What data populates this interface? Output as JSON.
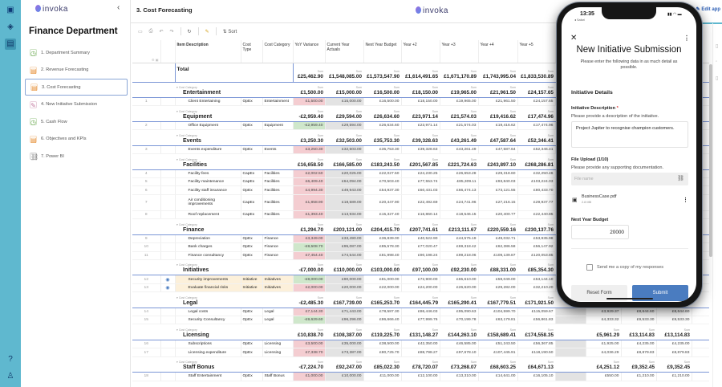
{
  "app": {
    "logo": "invoka",
    "edit_app": "Edit app",
    "page_title": "3. Cost Forecasting",
    "accent": "#5fb8cf"
  },
  "sidebar": {
    "title": "Finance Department",
    "items": [
      {
        "label": "1. Department Summary",
        "icon": "clock-icon",
        "color": "#6aa84f"
      },
      {
        "label": "2. Revenue Forecasting",
        "icon": "notebook-icon",
        "color": "#e69138"
      },
      {
        "label": "3. Cost Forecasting",
        "icon": "notebook-icon",
        "color": "#e69138",
        "selected": true
      },
      {
        "label": "4. New Initiative Submission",
        "icon": "form-icon",
        "color": "#c27ba0"
      },
      {
        "label": "5. Cash Flow",
        "icon": "clock-icon",
        "color": "#6aa84f"
      },
      {
        "label": "6. Objectives and KPIs",
        "icon": "notebook-icon",
        "color": "#e69138"
      },
      {
        "label": "7. Power BI",
        "icon": "link-icon",
        "color": "#777777"
      }
    ]
  },
  "toolbar": {
    "sort": "Sort"
  },
  "table": {
    "headers": [
      "Item Description",
      "Cost Type",
      "Cost Category",
      "YoY Variance",
      "Current Year Actuals",
      "Next Year Budget",
      "Year +2",
      "Year +3",
      "Year +4",
      "Year +5"
    ],
    "sum_label": "Sum",
    "group_label": "Cost Category",
    "total": {
      "label": "Total",
      "values": [
        "£25,462.90",
        "£1,548,085.00",
        "£1,573,547.90",
        "£1,614,491.65",
        "£1,671,170.89",
        "£1,743,995.04",
        "£1,833,530.89"
      ]
    },
    "groups": [
      {
        "name": "Entertainment",
        "values": [
          "£1,500.00",
          "£15,000.00",
          "£16,500.00",
          "£18,150.00",
          "£19,965.00",
          "£21,961.50",
          "£24,157.65"
        ],
        "items": [
          {
            "num": "1",
            "desc": "Client Entertaining",
            "type": "OpEx",
            "cat": "Entertainment",
            "values": [
              "£1,500.00",
              "£15,000.00",
              "£16,500.00",
              "£18,150.00",
              "£19,965.00",
              "£21,961.50",
              "£24,157.65"
            ]
          }
        ]
      },
      {
        "name": "Equipment",
        "values": [
          "-£2,959.40",
          "£29,594.00",
          "£26,634.60",
          "£23,971.14",
          "£21,574.03",
          "£19,416.62",
          "£17,474.96"
        ],
        "items": [
          {
            "num": "2",
            "desc": "Office Equipment",
            "type": "OpEx",
            "cat": "Equipment",
            "values": [
              "-£2,959.40",
              "£29,594.00",
              "£26,634.60",
              "£23,971.14",
              "£21,574.03",
              "£19,416.62",
              "£17,474.96"
            ]
          }
        ]
      },
      {
        "name": "Events",
        "values": [
          "£3,250.30",
          "£32,503.00",
          "£35,753.30",
          "£39,328.63",
          "£43,261.49",
          "£47,587.64",
          "£52,346.41"
        ],
        "items": [
          {
            "num": "3",
            "desc": "Events expenditure",
            "type": "OpEx",
            "cat": "Events",
            "values": [
              "£3,250.30",
              "£32,503.00",
              "£35,753.30",
              "£39,328.63",
              "£43,261.49",
              "£47,587.64",
              "£52,346.41"
            ]
          }
        ]
      },
      {
        "name": "Facilities",
        "values": [
          "£16,658.50",
          "£166,585.00",
          "£183,243.50",
          "£201,567.85",
          "£221,724.63",
          "£243,897.10",
          "£268,286.81"
        ],
        "items": [
          {
            "num": "4",
            "desc": "Facility fees",
            "type": "CapEx",
            "cat": "Facilities",
            "values": [
              "£2,002.50",
              "£20,025.00",
              "£22,027.50",
              "£24,230.25",
              "£26,653.28",
              "£29,318.60",
              "£32,250.46"
            ]
          },
          {
            "num": "5",
            "desc": "Facility maintenance",
            "type": "CapEx",
            "cat": "Facilities",
            "values": [
              "£6,409.40",
              "£64,094.00",
              "£70,503.40",
              "£77,553.74",
              "£85,309.11",
              "£93,840.03",
              "£103,224.03"
            ]
          },
          {
            "num": "6",
            "desc": "Facility staff insurance",
            "type": "OpEx",
            "cat": "Facilities",
            "values": [
              "£4,994.30",
              "£49,943.00",
              "£54,937.30",
              "£60,431.03",
              "£66,474.13",
              "£73,121.55",
              "£80,433.70"
            ]
          },
          {
            "num": "7",
            "desc": "Air conditioning improvements",
            "type": "CapEx",
            "cat": "Facilities",
            "values": [
              "£1,858.90",
              "£18,589.00",
              "£20,447.90",
              "£22,492.69",
              "£24,741.96",
              "£27,216.15",
              "£29,937.77"
            ]
          },
          {
            "num": "8",
            "desc": "Roof replacement",
            "type": "CapEx",
            "cat": "Facilities",
            "values": [
              "£1,393.40",
              "£13,934.00",
              "£15,327.40",
              "£16,860.14",
              "£18,546.15",
              "£20,400.77",
              "£22,440.85"
            ]
          }
        ]
      },
      {
        "name": "Finance",
        "values": [
          "£1,294.70",
          "£203,121.00",
          "£204,415.70",
          "£207,741.61",
          "£213,111.67",
          "£220,559.16",
          "£230,137.76"
        ],
        "items": [
          {
            "num": "9",
            "desc": "Depreciation",
            "type": "OpEx",
            "cat": "Finance",
            "values": [
              "£3,349.00",
              "£33,490.00",
              "£36,839.00",
              "£40,522.90",
              "£44,575.19",
              "£49,032.71",
              "£53,935.98"
            ]
          },
          {
            "num": "10",
            "desc": "Bank charges",
            "type": "OpEx",
            "cat": "Finance",
            "values": [
              "-£9,508.70",
              "£95,087.00",
              "£85,578.30",
              "£77,020.47",
              "£69,318.42",
              "£62,386.58",
              "£56,147.92"
            ]
          },
          {
            "num": "11",
            "desc": "Finance consultancy",
            "type": "OpEx",
            "cat": "Finance",
            "values": [
              "£7,454.40",
              "£74,544.00",
              "£81,998.40",
              "£90,198.24",
              "£99,218.06",
              "£109,139.87",
              "£120,053.85"
            ]
          }
        ]
      },
      {
        "name": "Initiatives",
        "values": [
          "-£7,000.00",
          "£110,000.00",
          "£103,000.00",
          "£97,100.00",
          "£92,230.00",
          "£88,331.00",
          "£85,354.30"
        ],
        "items": [
          {
            "num": "12",
            "desc": "Security improvements",
            "type": "Initiative",
            "cat": "Initiatives",
            "initiative": true,
            "values": [
              "-£9,000.00",
              "£90,000.00",
              "£81,000.00",
              "£72,900.00",
              "£65,610.00",
              "£59,049.00",
              "£53,144.10"
            ]
          },
          {
            "num": "13",
            "desc": "Evaluate financial risks",
            "type": "Initiative",
            "cat": "Initiatives",
            "initiative": true,
            "values": [
              "£2,000.00",
              "£20,000.00",
              "£22,000.00",
              "£24,200.00",
              "£26,620.00",
              "£29,282.00",
              "£32,210.20"
            ]
          }
        ]
      },
      {
        "name": "Legal",
        "values": [
          "-£2,485.30",
          "£167,739.00",
          "£165,253.70",
          "£164,445.79",
          "£165,290.41",
          "£167,779.51",
          "£171,921.50"
        ],
        "items": [
          {
            "num": "14",
            "desc": "Legal costs",
            "type": "OpEx",
            "cat": "Legal",
            "values": [
              "£7,144.30",
              "£71,443.00",
              "£78,587.30",
              "£86,446.03",
              "£95,090.63",
              "£104,599.70",
              "£115,059.67"
            ],
            "extra": [
              "£3,929.37",
              "£8,644.60",
              "£8,644.60"
            ]
          },
          {
            "num": "15",
            "desc": "Security Consultancy",
            "type": "OpEx",
            "cat": "Legal",
            "values": [
              "-£9,629.60",
              "£96,296.00",
              "£86,666.40",
              "£77,999.76",
              "£70,199.78",
              "£63,179.81",
              "£56,861.83"
            ],
            "extra": [
              "£4,333.32",
              "£9,533.30",
              "£9,533.30"
            ]
          }
        ]
      },
      {
        "name": "Licensing",
        "values": [
          "£10,838.70",
          "£108,387.00",
          "£119,225.70",
          "£131,148.27",
          "£144,263.10",
          "£158,689.41",
          "£174,558.35"
        ],
        "extra": [
          "£5,961.29",
          "£13,114.83",
          "£13,114.83"
        ],
        "items": [
          {
            "num": "16",
            "desc": "Subscriptions",
            "type": "OpEx",
            "cat": "Licensing",
            "values": [
              "£3,500.00",
              "£35,000.00",
              "£38,500.00",
              "£42,350.00",
              "£46,585.00",
              "£51,243.50",
              "£56,367.85"
            ],
            "extra": [
              "£1,925.00",
              "£4,235.00",
              "£4,235.00"
            ]
          },
          {
            "num": "17",
            "desc": "Licensing expenditure",
            "type": "OpEx",
            "cat": "Licensing",
            "values": [
              "£7,338.70",
              "£73,387.00",
              "£80,725.70",
              "£88,798.27",
              "£97,678.10",
              "£107,445.91",
              "£118,190.50"
            ],
            "extra": [
              "£4,036.29",
              "£8,879.83",
              "£8,879.83"
            ]
          }
        ]
      },
      {
        "name": "Staff Bonus",
        "values": [
          "-£7,224.70",
          "£92,247.00",
          "£85,022.30",
          "£78,720.07",
          "£73,268.07",
          "£68,603.25",
          "£64,671.13"
        ],
        "extra": [
          "£4,251.12",
          "£9,352.45",
          "£9,352.45"
        ],
        "items": [
          {
            "num": "18",
            "desc": "Staff Entertainment",
            "type": "OpEx",
            "cat": "Staff Bonus",
            "values": [
              "£1,000.00",
              "£10,000.00",
              "£11,000.00",
              "£12,100.00",
              "£13,310.00",
              "£14,641.00",
              "£16,105.10"
            ],
            "extra": [
              "£550.00",
              "£1,210.00",
              "£1,210.00"
            ]
          }
        ]
      }
    ],
    "colors": {
      "positive_variance": "#f4cdd1",
      "negative_variance": "#cfe7cb",
      "actuals": "#e3e3e3",
      "initiative": "#fcf0da",
      "group_line": "#7b96d6"
    }
  },
  "phone": {
    "time": "13:35",
    "back": "◂ Safari",
    "title": "New Initiative Submission",
    "subtitle": "Please enter the following data in as much detail as possible.",
    "section": "Initiative Details",
    "desc_label": "Initiative Description",
    "required": "*",
    "desc_help": "Please provide a description of the initiative.",
    "desc_value": "Project Jupiter to recognise champion customers.",
    "upload_label": "File Upload (1/10)",
    "upload_help": "Please provide any supporting documentation.",
    "file_placeholder": "File name",
    "file_name": "BusinessCase.pdf",
    "file_size": "2.8 MB",
    "budget_label": "Next Year Budget",
    "budget_value": "20000",
    "copy_label": "Send me a copy of my responses",
    "reset": "Reset Form",
    "submit": "Submit",
    "submit_color": "#4a7cc0"
  }
}
